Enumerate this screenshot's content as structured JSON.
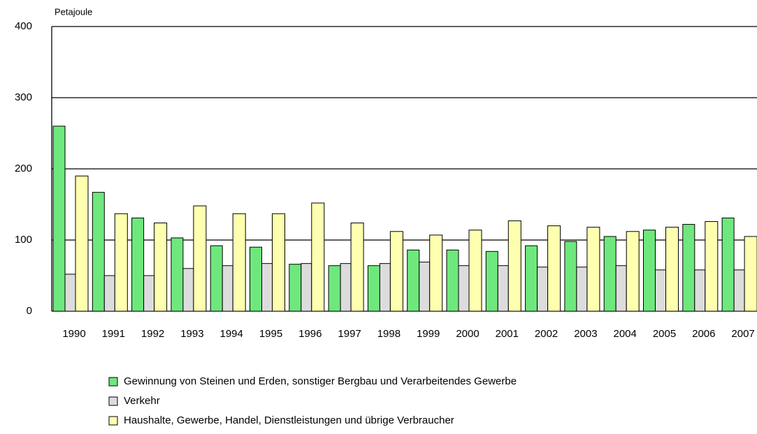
{
  "chart_data": {
    "type": "bar",
    "y_axis_label": "Petajoule",
    "categories": [
      "1990",
      "1991",
      "1992",
      "1993",
      "1994",
      "1995",
      "1996",
      "1997",
      "1998",
      "1999",
      "2000",
      "2001",
      "2002",
      "2003",
      "2004",
      "2005",
      "2006",
      "2007"
    ],
    "series": [
      {
        "name": "Gewinnung von Steinen und Erden, sonstiger Bergbau und Verarbeitendes Gewerbe",
        "color": "#6ee87c",
        "values": [
          260,
          167,
          131,
          103,
          92,
          90,
          66,
          64,
          64,
          86,
          86,
          84,
          92,
          98,
          105,
          114,
          122,
          131
        ]
      },
      {
        "name": "Verkehr",
        "color": "#dcdcdc",
        "values": [
          52,
          50,
          50,
          60,
          64,
          67,
          67,
          67,
          67,
          69,
          64,
          64,
          62,
          62,
          64,
          58,
          58,
          58
        ]
      },
      {
        "name": "Haushalte, Gewerbe, Handel, Dienstleistungen und übrige Verbraucher",
        "color": "#ffffb0",
        "values": [
          190,
          137,
          124,
          148,
          137,
          137,
          152,
          124,
          112,
          107,
          114,
          127,
          120,
          118,
          112,
          118,
          126,
          105
        ]
      }
    ],
    "ylim": [
      0,
      400
    ],
    "yticks": [
      0,
      100,
      200,
      300,
      400
    ],
    "grid": true
  }
}
